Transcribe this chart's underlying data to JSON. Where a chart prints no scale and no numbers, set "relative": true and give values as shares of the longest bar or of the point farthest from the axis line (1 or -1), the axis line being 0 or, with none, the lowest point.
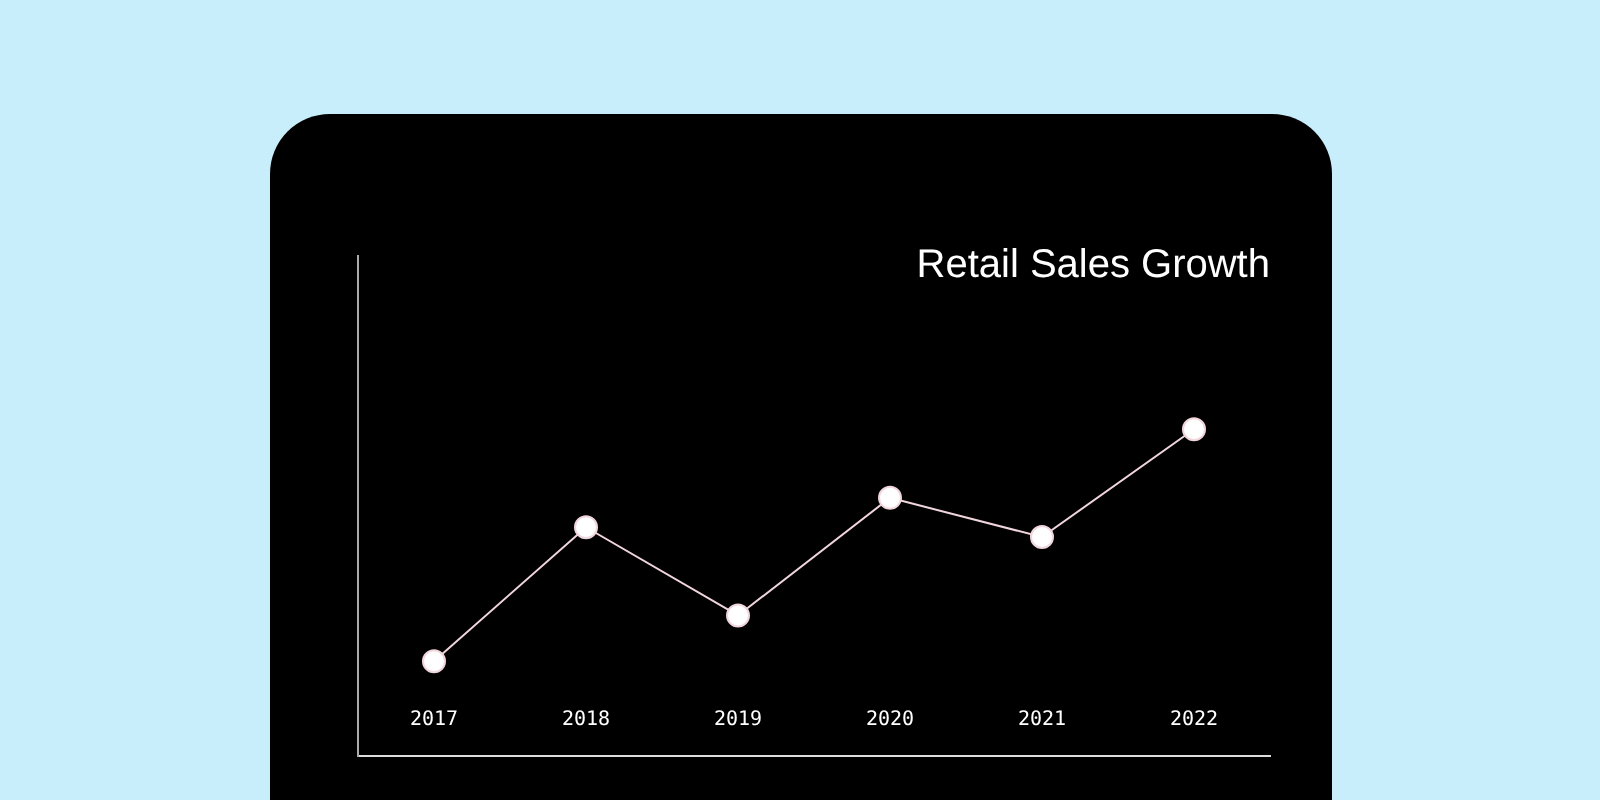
{
  "chart_data": {
    "type": "line",
    "title": "Retail Sales Growth",
    "categories": [
      "2017",
      "2018",
      "2019",
      "2020",
      "2021",
      "2022"
    ],
    "relative": true,
    "series": [
      {
        "color": "#f0d6dc",
        "values": [
          0.29,
          0.7,
          0.43,
          0.79,
          0.67,
          1
        ]
      }
    ],
    "marker": "circle",
    "line_style": "solid",
    "grid": false,
    "legend": false
  }
}
